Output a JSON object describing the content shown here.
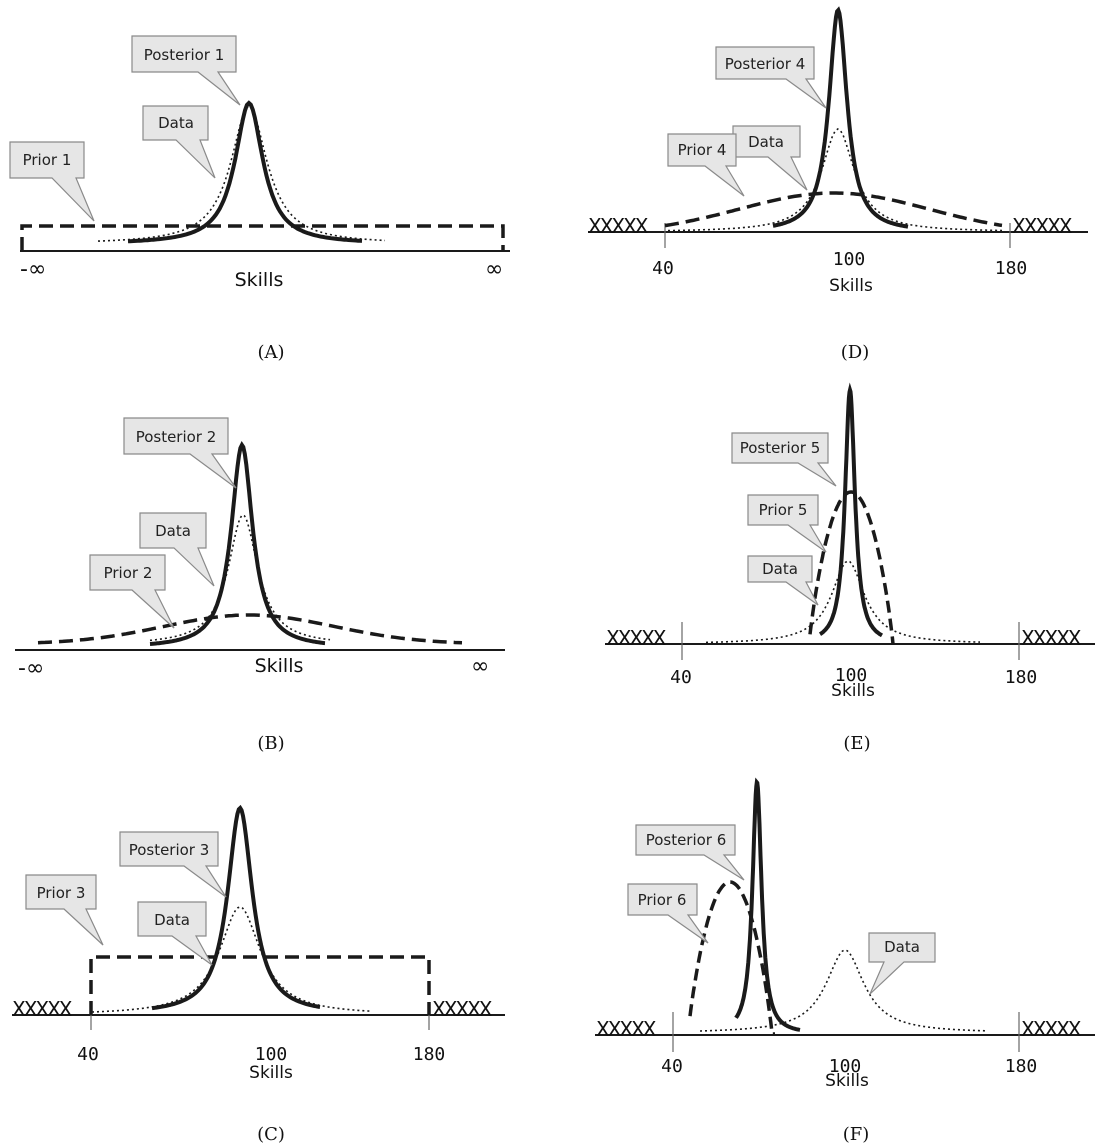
{
  "panels": {
    "A": {
      "caption": "(A)",
      "axis_label": "Skills",
      "left_end": "-∞",
      "right_end": "∞",
      "labels": {
        "posterior": "Posterior 1",
        "data": "Data",
        "prior": "Prior 1"
      }
    },
    "B": {
      "caption": "(B)",
      "axis_label": "Skills",
      "left_end": "-∞",
      "right_end": "∞",
      "labels": {
        "posterior": "Posterior 2",
        "data": "Data",
        "prior": "Prior 2"
      }
    },
    "C": {
      "caption": "(C)",
      "axis_label": "Skills",
      "ticks": [
        "40",
        "100",
        "180"
      ],
      "excluded_marks": "XXXXX",
      "labels": {
        "posterior": "Posterior 3",
        "data": "Data",
        "prior": "Prior 3"
      }
    },
    "D": {
      "caption": "(D)",
      "axis_label": "Skills",
      "ticks": [
        "40",
        "100",
        "180"
      ],
      "excluded_marks": "XXXXX",
      "labels": {
        "posterior": "Posterior 4",
        "data": "Data",
        "prior": "Prior 4"
      }
    },
    "E": {
      "caption": "(E)",
      "axis_label": "Skills",
      "ticks": [
        "40",
        "100",
        "180"
      ],
      "excluded_marks": "XXXXX",
      "labels": {
        "posterior": "Posterior 5",
        "data": "Data",
        "prior": "Prior 5"
      }
    },
    "F": {
      "caption": "(F)",
      "axis_label": "Skills",
      "ticks": [
        "40",
        "100",
        "180"
      ],
      "excluded_marks": "XXXXX",
      "labels": {
        "posterior": "Posterior 6",
        "data": "Data",
        "prior": "Prior 6"
      }
    }
  },
  "line_styles": {
    "posterior": "solid-thick",
    "prior": "dashed-thick",
    "data": "dotted-thin"
  },
  "colors": {
    "ink": "#1a1a1a",
    "callout_fill": "#e6e6e6",
    "callout_stroke": "#8a8a8a"
  }
}
